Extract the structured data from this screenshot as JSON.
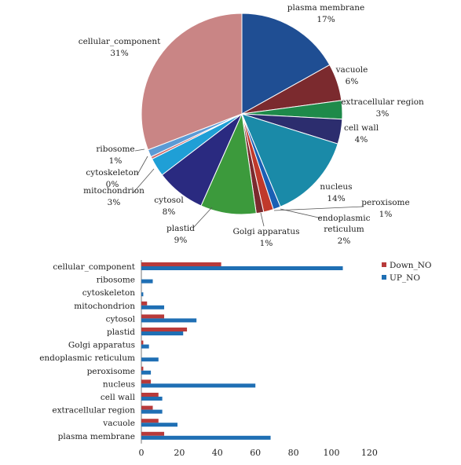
{
  "chart_data": [
    {
      "type": "pie",
      "slices": [
        {
          "label": "plasma membrane",
          "pct": "17%",
          "value": 17,
          "color": "#1f4e93"
        },
        {
          "label": "vacuole",
          "pct": "6%",
          "value": 6,
          "color": "#7b2a2e"
        },
        {
          "label": "extracellular region",
          "pct": "3%",
          "value": 3,
          "color": "#1e8a4a"
        },
        {
          "label": "cell wall",
          "pct": "4%",
          "value": 4,
          "color": "#2c2d6e"
        },
        {
          "label": "nucleus",
          "pct": "14%",
          "value": 14,
          "color": "#1a8aa8"
        },
        {
          "label": "peroxisome",
          "pct": "1%",
          "value": 1.2,
          "color": "#1a5fb4"
        },
        {
          "label": "endoplasmic reticulum",
          "label_lines": [
            "endoplasmic",
            "reticulum"
          ],
          "pct": "2%",
          "value": 1.6,
          "color": "#c0392b"
        },
        {
          "label": "Golgi apparatus",
          "pct": "1%",
          "value": 1.2,
          "color": "#7b2a2e"
        },
        {
          "label": "plastid",
          "pct": "9%",
          "value": 9,
          "color": "#3c9a3c"
        },
        {
          "label": "cytosol",
          "pct": "8%",
          "value": 8,
          "color": "#2a2a80"
        },
        {
          "label": "mitochondrion",
          "pct": "3%",
          "value": 3,
          "color": "#1f9fd6"
        },
        {
          "label": "cytoskeleton",
          "pct": "0%",
          "value": 0.4,
          "color": "#cf6f6f"
        },
        {
          "label": "ribosome",
          "pct": "1%",
          "value": 1.2,
          "color": "#5b9bd5"
        },
        {
          "label": "cellular_component",
          "pct": "31%",
          "value": 31,
          "color": "#c98585"
        }
      ]
    },
    {
      "type": "bar",
      "orientation": "horizontal",
      "categories": [
        "cellular_component",
        "ribosome",
        "cytoskeleton",
        "mitochondrion",
        "cytosol",
        "plastid",
        "Golgi apparatus",
        "endoplasmic reticulum",
        "peroxisome",
        "nucleus",
        "cell wall",
        "extracellular region",
        "vacuole",
        "plasma membrane"
      ],
      "series": [
        {
          "name": "Down_NO",
          "color": "#b83a3a",
          "values": [
            42,
            0,
            0,
            3,
            12,
            24,
            1,
            0,
            1,
            5,
            9,
            6,
            9,
            12
          ]
        },
        {
          "name": "UP_NO",
          "color": "#1f6fb4",
          "values": [
            106,
            6,
            1,
            12,
            29,
            22,
            4,
            9,
            5,
            60,
            11,
            11,
            19,
            68
          ]
        }
      ],
      "xlim": [
        0,
        120
      ],
      "xticks": [
        "0",
        "20",
        "40",
        "60",
        "80",
        "100",
        "120"
      ],
      "legend": "top-right",
      "grid": false
    }
  ]
}
